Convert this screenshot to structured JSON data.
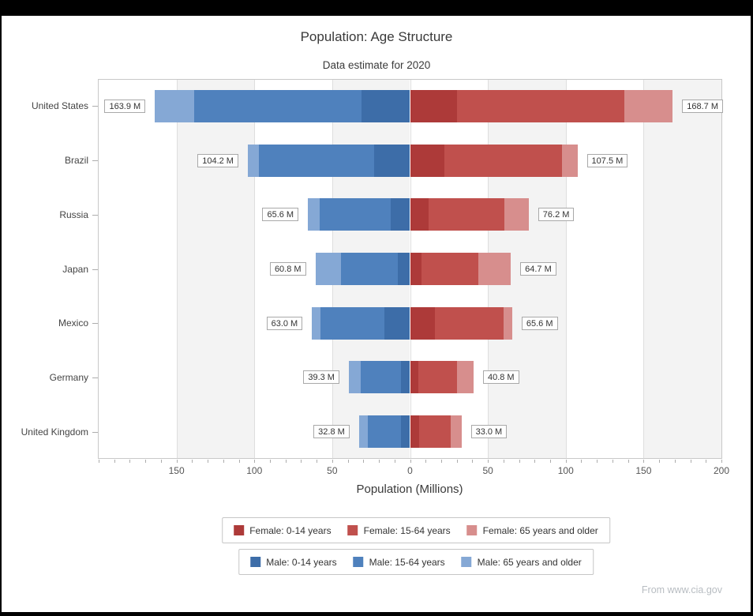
{
  "footer": {
    "source": "From www.cia.gov"
  },
  "colors": {
    "male_0_14": "#3d6da8",
    "male_15_64": "#4f81bd",
    "male_65_plus": "#85a8d5",
    "female_0_14": "#ad3a39",
    "female_15_64": "#c0504d",
    "female_65_plus": "#d78e8d",
    "grid_line": "#dedede",
    "band_fill": "#f3f3f3",
    "plot_border": "#c8c8c8",
    "axis_text": "#555555",
    "category_text": "#444444",
    "label_box_border": "#a9a9a9",
    "source_text": "#b8bdc2"
  },
  "chart_data": {
    "type": "bar",
    "variant": "diverging-stacked-horizontal",
    "title": "Population: Age Structure",
    "subtitle": "Data estimate for 2020",
    "xlabel": "Population (Millions)",
    "categories": [
      "United States",
      "Brazil",
      "Russia",
      "Japan",
      "Mexico",
      "Germany",
      "United Kingdom"
    ],
    "axis": {
      "min": -200.5,
      "max": 200.5,
      "major_tick_step": 50,
      "minor_tick_step": 10,
      "tick_values": [
        -150,
        -100,
        -50,
        0,
        50,
        100,
        150,
        200
      ],
      "tick_labels": [
        "150",
        "100",
        "50",
        "0",
        "50",
        "100",
        "150",
        "200"
      ]
    },
    "series": [
      {
        "name": "Male: 0-14 years",
        "side": "left",
        "color_key": "male_0_14",
        "values": [
          31.4,
          22.9,
          12.6,
          7.8,
          16.4,
          5.7,
          5.8
        ]
      },
      {
        "name": "Male: 15-64 years",
        "side": "left",
        "color_key": "male_15_64",
        "values": [
          107.5,
          74.0,
          45.6,
          36.7,
          41.3,
          25.8,
          21.4
        ]
      },
      {
        "name": "Male: 65 years and older",
        "side": "left",
        "color_key": "male_65_plus",
        "values": [
          25.0,
          7.3,
          7.4,
          16.3,
          5.3,
          7.8,
          5.6
        ]
      },
      {
        "name": "Female: 0-14 years",
        "side": "right",
        "color_key": "female_0_14",
        "values": [
          30.0,
          21.9,
          11.9,
          7.2,
          15.9,
          5.4,
          5.6
        ]
      },
      {
        "name": "Female: 15-64 years",
        "side": "right",
        "color_key": "female_15_64",
        "values": [
          107.7,
          75.6,
          48.6,
          36.5,
          44.3,
          24.9,
          20.7
        ]
      },
      {
        "name": "Female: 65 years and older",
        "side": "right",
        "color_key": "female_65_plus",
        "values": [
          31.0,
          10.0,
          15.7,
          21.0,
          5.4,
          10.5,
          6.7
        ]
      }
    ],
    "total_labels": {
      "male": [
        "163.9 M",
        "104.2 M",
        "65.6 M",
        "60.8 M",
        "63.0 M",
        "39.3 M",
        "32.8 M"
      ],
      "female": [
        "168.7 M",
        "107.5 M",
        "76.2 M",
        "64.7 M",
        "65.6 M",
        "40.8 M",
        "33.0 M"
      ]
    },
    "legend": {
      "position": "bottom",
      "rows": [
        [
          "Female: 0-14 years",
          "Female: 15-64 years",
          "Female: 65 years and older"
        ],
        [
          "Male: 0-14 years",
          "Male: 15-64 years",
          "Male: 65 years and older"
        ]
      ]
    },
    "grid": true,
    "band_shading": "alternating-50M"
  }
}
